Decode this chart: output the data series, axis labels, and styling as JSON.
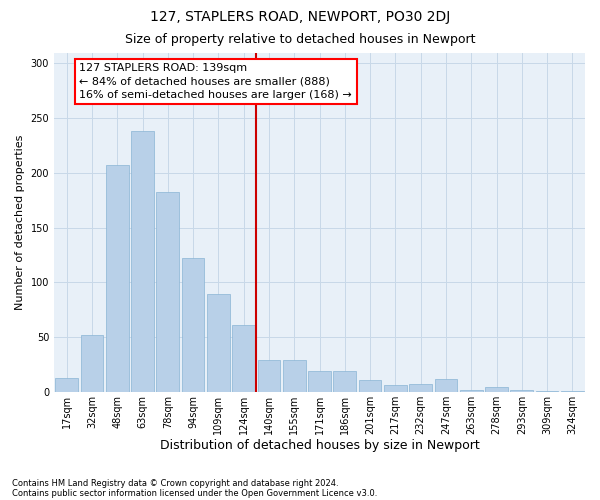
{
  "title": "127, STAPLERS ROAD, NEWPORT, PO30 2DJ",
  "subtitle": "Size of property relative to detached houses in Newport",
  "xlabel": "Distribution of detached houses by size in Newport",
  "ylabel": "Number of detached properties",
  "footnote1": "Contains HM Land Registry data © Crown copyright and database right 2024.",
  "footnote2": "Contains public sector information licensed under the Open Government Licence v3.0.",
  "annotation_line1": "127 STAPLERS ROAD: 139sqm",
  "annotation_line2": "← 84% of detached houses are smaller (888)",
  "annotation_line3": "16% of semi-detached houses are larger (168) →",
  "bar_labels": [
    "17sqm",
    "32sqm",
    "48sqm",
    "63sqm",
    "78sqm",
    "94sqm",
    "109sqm",
    "124sqm",
    "140sqm",
    "155sqm",
    "171sqm",
    "186sqm",
    "201sqm",
    "217sqm",
    "232sqm",
    "247sqm",
    "263sqm",
    "278sqm",
    "293sqm",
    "309sqm",
    "324sqm"
  ],
  "bar_values": [
    13,
    52,
    207,
    238,
    183,
    122,
    89,
    61,
    29,
    29,
    19,
    19,
    11,
    6,
    7,
    12,
    2,
    4,
    2,
    1,
    1
  ],
  "bar_color": "#b8d0e8",
  "bar_edgecolor": "#8ab4d4",
  "grid_color": "#c8d8e8",
  "bg_color": "#e8f0f8",
  "vline_color": "#cc0000",
  "ylim": [
    0,
    310
  ],
  "title_fontsize": 10,
  "subtitle_fontsize": 9,
  "ylabel_fontsize": 8,
  "xlabel_fontsize": 9,
  "tick_fontsize": 7,
  "footnote_fontsize": 6,
  "annotation_fontsize": 8
}
